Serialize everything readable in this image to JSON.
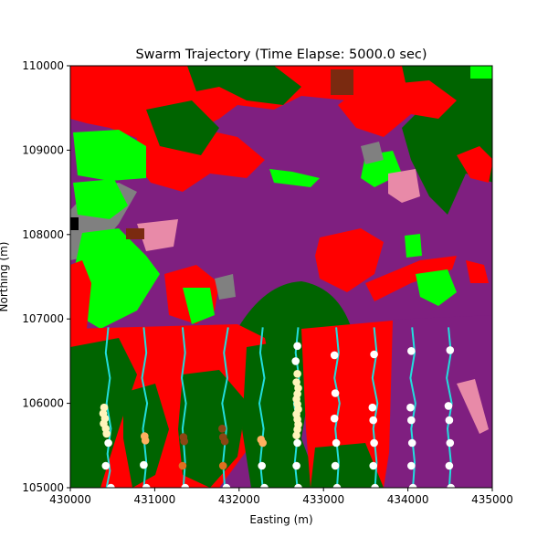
{
  "chart_data": {
    "type": "scatter",
    "title": "Swarm Trajectory (Time Elapse: 5000.0 sec)",
    "xlabel": "Easting (m)",
    "ylabel": "Northing (m)",
    "xlim": [
      430000,
      435000
    ],
    "ylim": [
      105000,
      110000
    ],
    "xticks": [
      430000,
      431000,
      432000,
      433000,
      434000,
      435000
    ],
    "yticks": [
      105000,
      106000,
      107000,
      108000,
      109000,
      110000
    ],
    "grid": false,
    "background": "land-cover raster map",
    "colors": {
      "purple": "#7f1f80",
      "red": "#ff0000",
      "dark_green": "#006400",
      "bright_green": "#00ff00",
      "gray": "#808080",
      "pink": "#e88aa8",
      "brown": "#7a2a10",
      "black": "#000000",
      "trail": "#22dddd",
      "dot_white": "#ffffff",
      "dot_cream": "#fff4bb",
      "dot_orange": "#ffb060",
      "dot_darkorange": "#e07020",
      "dot_brown": "#8b4513"
    },
    "trajectories": [
      {
        "x": [
          430450,
          430420,
          430470,
          430430,
          430480,
          430440,
          430470,
          430430
        ],
        "y": [
          106900,
          106600,
          106300,
          106000,
          105700,
          105400,
          105200,
          105000
        ]
      },
      {
        "x": [
          430870,
          430900,
          430850,
          430910,
          430860,
          430900,
          430870
        ],
        "y": [
          106900,
          106600,
          106300,
          106000,
          105700,
          105300,
          105000
        ]
      },
      {
        "x": [
          431330,
          431360,
          431320,
          431370,
          431330,
          431360,
          431340
        ],
        "y": [
          106900,
          106600,
          106300,
          106000,
          105700,
          105300,
          105000
        ]
      },
      {
        "x": [
          431870,
          431820,
          431860,
          431800,
          431850,
          431810,
          431830
        ],
        "y": [
          106900,
          106600,
          106300,
          106000,
          105700,
          105300,
          105000
        ]
      },
      {
        "x": [
          432280,
          432250,
          432300,
          432240,
          432290,
          432250,
          432280
        ],
        "y": [
          106900,
          106600,
          106300,
          106000,
          105700,
          105300,
          105000
        ]
      },
      {
        "x": [
          432700,
          432670,
          432710,
          432650,
          432700,
          432660,
          432690
        ],
        "y": [
          106900,
          106600,
          106300,
          106000,
          105700,
          105300,
          105000
        ]
      },
      {
        "x": [
          433150,
          433180,
          433130,
          433190,
          433140,
          433180,
          433160
        ],
        "y": [
          106900,
          106600,
          106300,
          106000,
          105700,
          105300,
          105000
        ]
      },
      {
        "x": [
          433600,
          433630,
          433580,
          433640,
          433590,
          433630,
          433610
        ],
        "y": [
          106900,
          106600,
          106300,
          106000,
          105700,
          105300,
          105000
        ]
      },
      {
        "x": [
          434050,
          434080,
          434030,
          434090,
          434040,
          434080,
          434060
        ],
        "y": [
          106900,
          106600,
          106300,
          106000,
          105700,
          105300,
          105000
        ]
      },
      {
        "x": [
          434480,
          434510,
          434460,
          434520,
          434470,
          434510,
          434490
        ],
        "y": [
          106900,
          106600,
          106300,
          106000,
          105700,
          105300,
          105000
        ]
      }
    ],
    "points": [
      {
        "x": 430400,
        "y": 105950,
        "c": "dot_cream"
      },
      {
        "x": 430390,
        "y": 105880,
        "c": "dot_cream"
      },
      {
        "x": 430410,
        "y": 105820,
        "c": "dot_cream"
      },
      {
        "x": 430395,
        "y": 105760,
        "c": "dot_cream"
      },
      {
        "x": 430420,
        "y": 105700,
        "c": "dot_cream"
      },
      {
        "x": 430430,
        "y": 105640,
        "c": "dot_cream"
      },
      {
        "x": 430450,
        "y": 105530,
        "c": "dot_white"
      },
      {
        "x": 430420,
        "y": 105260,
        "c": "dot_white"
      },
      {
        "x": 430480,
        "y": 105000,
        "c": "dot_white"
      },
      {
        "x": 430880,
        "y": 105610,
        "c": "dot_orange"
      },
      {
        "x": 430890,
        "y": 105560,
        "c": "dot_orange"
      },
      {
        "x": 430870,
        "y": 105270,
        "c": "dot_white"
      },
      {
        "x": 430900,
        "y": 105000,
        "c": "dot_white"
      },
      {
        "x": 431340,
        "y": 105600,
        "c": "dot_brown"
      },
      {
        "x": 431350,
        "y": 105550,
        "c": "dot_brown"
      },
      {
        "x": 431330,
        "y": 105260,
        "c": "dot_darkorange"
      },
      {
        "x": 431360,
        "y": 105000,
        "c": "dot_white"
      },
      {
        "x": 431800,
        "y": 105700,
        "c": "dot_brown"
      },
      {
        "x": 431810,
        "y": 105600,
        "c": "dot_brown"
      },
      {
        "x": 431830,
        "y": 105550,
        "c": "dot_brown"
      },
      {
        "x": 431810,
        "y": 105260,
        "c": "dot_darkorange"
      },
      {
        "x": 431850,
        "y": 105000,
        "c": "dot_white"
      },
      {
        "x": 432260,
        "y": 105570,
        "c": "dot_orange"
      },
      {
        "x": 432280,
        "y": 105530,
        "c": "dot_orange"
      },
      {
        "x": 432270,
        "y": 105260,
        "c": "dot_white"
      },
      {
        "x": 432300,
        "y": 105000,
        "c": "dot_white"
      },
      {
        "x": 432690,
        "y": 106680,
        "c": "dot_white"
      },
      {
        "x": 432670,
        "y": 106500,
        "c": "dot_white"
      },
      {
        "x": 432690,
        "y": 106350,
        "c": "dot_cream"
      },
      {
        "x": 432680,
        "y": 106250,
        "c": "dot_cream"
      },
      {
        "x": 432700,
        "y": 106180,
        "c": "dot_cream"
      },
      {
        "x": 432690,
        "y": 106110,
        "c": "dot_cream"
      },
      {
        "x": 432680,
        "y": 106050,
        "c": "dot_cream"
      },
      {
        "x": 432690,
        "y": 105990,
        "c": "dot_cream"
      },
      {
        "x": 432700,
        "y": 105930,
        "c": "dot_cream"
      },
      {
        "x": 432680,
        "y": 105870,
        "c": "dot_cream"
      },
      {
        "x": 432690,
        "y": 105810,
        "c": "dot_cream"
      },
      {
        "x": 432700,
        "y": 105750,
        "c": "dot_cream"
      },
      {
        "x": 432690,
        "y": 105690,
        "c": "dot_cream"
      },
      {
        "x": 432680,
        "y": 105620,
        "c": "dot_cream"
      },
      {
        "x": 432690,
        "y": 105530,
        "c": "dot_white"
      },
      {
        "x": 432680,
        "y": 105260,
        "c": "dot_white"
      },
      {
        "x": 432700,
        "y": 105000,
        "c": "dot_white"
      },
      {
        "x": 433130,
        "y": 106570,
        "c": "dot_white"
      },
      {
        "x": 433140,
        "y": 106120,
        "c": "dot_white"
      },
      {
        "x": 433130,
        "y": 105820,
        "c": "dot_white"
      },
      {
        "x": 433150,
        "y": 105530,
        "c": "dot_white"
      },
      {
        "x": 433140,
        "y": 105260,
        "c": "dot_white"
      },
      {
        "x": 433160,
        "y": 105000,
        "c": "dot_white"
      },
      {
        "x": 433600,
        "y": 106580,
        "c": "dot_white"
      },
      {
        "x": 433580,
        "y": 105950,
        "c": "dot_white"
      },
      {
        "x": 433590,
        "y": 105800,
        "c": "dot_white"
      },
      {
        "x": 433600,
        "y": 105530,
        "c": "dot_white"
      },
      {
        "x": 433590,
        "y": 105260,
        "c": "dot_white"
      },
      {
        "x": 433610,
        "y": 105000,
        "c": "dot_white"
      },
      {
        "x": 434040,
        "y": 106620,
        "c": "dot_white"
      },
      {
        "x": 434030,
        "y": 105950,
        "c": "dot_white"
      },
      {
        "x": 434040,
        "y": 105800,
        "c": "dot_white"
      },
      {
        "x": 434050,
        "y": 105530,
        "c": "dot_white"
      },
      {
        "x": 434040,
        "y": 105260,
        "c": "dot_white"
      },
      {
        "x": 434060,
        "y": 105000,
        "c": "dot_white"
      },
      {
        "x": 434500,
        "y": 106630,
        "c": "dot_white"
      },
      {
        "x": 434480,
        "y": 105970,
        "c": "dot_white"
      },
      {
        "x": 434490,
        "y": 105800,
        "c": "dot_white"
      },
      {
        "x": 434500,
        "y": 105530,
        "c": "dot_white"
      },
      {
        "x": 434490,
        "y": 105260,
        "c": "dot_white"
      },
      {
        "x": 434510,
        "y": 105000,
        "c": "dot_white"
      }
    ]
  }
}
